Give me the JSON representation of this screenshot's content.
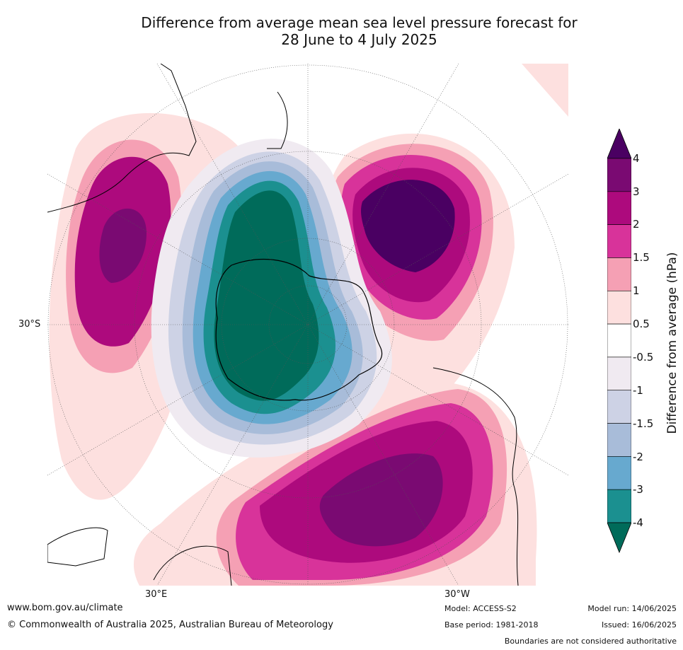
{
  "title_line1": "Difference from average mean sea level pressure forecast for",
  "title_line2": "28 June to 4 July 2025",
  "map_labels": {
    "lat_30s": "30°S",
    "lon_30e": "30°E",
    "lon_30w": "30°W"
  },
  "colorbar": {
    "label": "Difference from average (hPa)",
    "ticks": [
      "4",
      "3",
      "2",
      "1.5",
      "1",
      "0.5",
      "-0.5",
      "-1",
      "-1.5",
      "-2",
      "-3",
      "-4"
    ],
    "colors": [
      "#4a0062",
      "#7a0a72",
      "#ad0a7d",
      "#d8339a",
      "#f5a0b4",
      "#fde0df",
      "#ffffff",
      "#f0eaf1",
      "#cdd2e5",
      "#a8bcd9",
      "#67a9cf",
      "#1b9090",
      "#006b5a"
    ]
  },
  "footer": {
    "url": "www.bom.gov.au/climate",
    "copyright": "© Commonwealth of Australia 2025, Australian Bureau of Meteorology",
    "model": "Model: ACCESS-S2",
    "base_period": "Base period: 1981-2018",
    "model_run": "Model run: 14/06/2025",
    "issued": "Issued: 16/06/2025",
    "disclaimer": "Boundaries are not considered authoritative"
  }
}
